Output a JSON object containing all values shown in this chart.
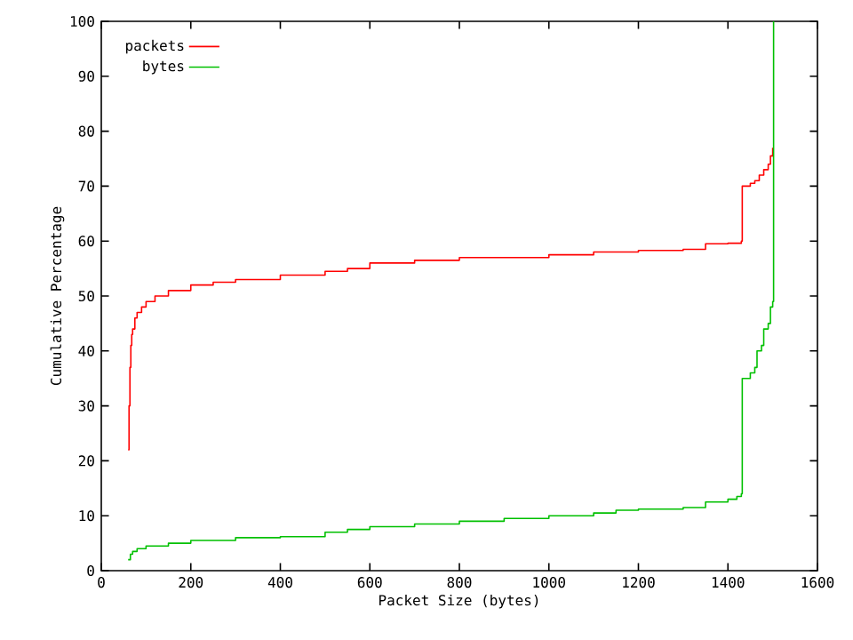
{
  "chart_data": {
    "type": "step",
    "xlabel": "Packet Size (bytes)",
    "ylabel": "Cumulative Percentage",
    "xlim": [
      0,
      1600
    ],
    "ylim": [
      0,
      100
    ],
    "xticks": [
      0,
      200,
      400,
      600,
      800,
      1000,
      1200,
      1400,
      1600
    ],
    "yticks": [
      0,
      10,
      20,
      30,
      40,
      50,
      60,
      70,
      80,
      90,
      100
    ],
    "legend": "top left",
    "grid": false,
    "series": [
      {
        "name": "packets",
        "color": "#ff0000",
        "x": [
          60,
          62,
          64,
          66,
          68,
          70,
          75,
          80,
          90,
          100,
          120,
          150,
          200,
          250,
          300,
          400,
          500,
          550,
          600,
          700,
          800,
          1000,
          1100,
          1200,
          1300,
          1350,
          1400,
          1430,
          1432,
          1450,
          1460,
          1470,
          1480,
          1490,
          1495,
          1500
        ],
        "values": [
          22,
          30,
          37,
          41,
          43,
          44,
          46,
          47,
          48,
          49,
          50,
          51,
          52,
          52.5,
          53,
          53.8,
          54.5,
          55,
          56,
          56.5,
          57,
          57.5,
          58,
          58.3,
          58.5,
          59.5,
          59.6,
          60,
          70,
          70.5,
          71,
          72,
          73,
          74,
          75.5,
          77
        ]
      },
      {
        "name": "bytes",
        "color": "#00c000",
        "x": [
          60,
          65,
          70,
          80,
          100,
          150,
          200,
          300,
          400,
          500,
          550,
          600,
          700,
          800,
          900,
          1000,
          1100,
          1150,
          1200,
          1300,
          1350,
          1400,
          1420,
          1430,
          1432,
          1450,
          1460,
          1465,
          1475,
          1480,
          1490,
          1495,
          1500,
          1502
        ],
        "values": [
          2,
          3,
          3.5,
          4,
          4.5,
          5,
          5.5,
          6,
          6.2,
          7,
          7.5,
          8,
          8.5,
          9,
          9.5,
          10,
          10.5,
          11,
          11.2,
          11.5,
          12.5,
          13,
          13.5,
          14,
          35,
          36,
          37,
          40,
          41,
          44,
          45,
          48,
          49,
          100
        ]
      }
    ]
  }
}
